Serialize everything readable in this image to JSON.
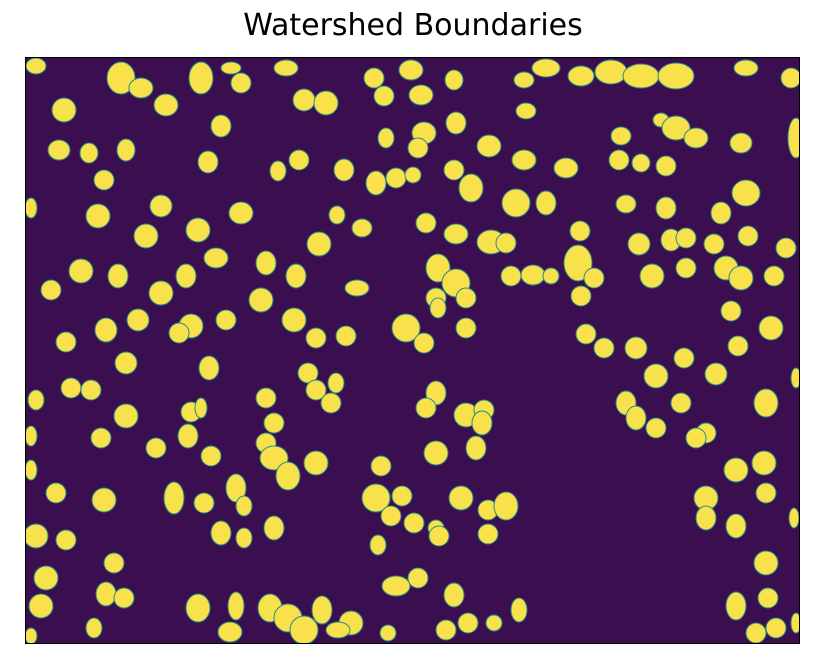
{
  "title": "Watershed Boundaries",
  "colors": {
    "background": "#3b0f4f",
    "blob": "#f8e14a",
    "edge": "#2a8a86"
  }
}
